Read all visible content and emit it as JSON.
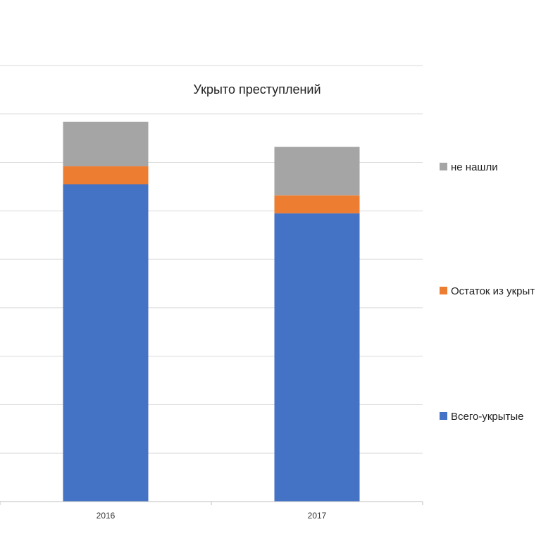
{
  "chart_data": {
    "type": "bar",
    "stacked": true,
    "title": "Укрыто преступлений",
    "categories": [
      "2016",
      "2017"
    ],
    "series": [
      {
        "name": "Всего-укрытые",
        "color": "#4472c4",
        "values": [
          65.5,
          59.5
        ]
      },
      {
        "name": "Остаток из укрыт",
        "color": "#ed7d31",
        "values": [
          3.7,
          3.7
        ]
      },
      {
        "name": "не нашли",
        "color": "#a5a5a5",
        "values": [
          9.2,
          10.0
        ]
      }
    ],
    "legend_order": [
      "не нашли",
      "Остаток из укрыт",
      "Всего-укрытые"
    ],
    "legend_position": "right",
    "grid": true,
    "ylim": [
      0,
      90
    ],
    "ytick_step": 10,
    "gridline_color": "#d9d9d9"
  }
}
